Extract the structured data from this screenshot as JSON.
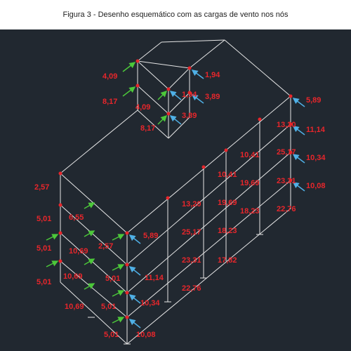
{
  "caption": "Figura 3 -  Desenho esquemático com as cargas de vento nos nós",
  "colors": {
    "background": "#212830",
    "frame": "#e6e6e6",
    "load_label": "#e8262b",
    "green_arrow": "#4cc83a",
    "blue_arrow": "#4fb0e6",
    "node": "#e8262b"
  },
  "left_face_labels": [
    "2,57",
    "5,01",
    "5,01",
    "5,01",
    "10,69"
  ],
  "left_face_inner_labels": [
    "6,55",
    "10,69",
    "10,69",
    "2,57",
    "5,01",
    "5,01",
    "5,01"
  ],
  "front_labels": [
    "5,89",
    "11,14",
    "10,34",
    "10,08"
  ],
  "mid_labels": [
    "13,20",
    "25,17",
    "23,31",
    "22,76",
    "19,69",
    "18,23",
    "17,82",
    "10,41"
  ],
  "rear_labels": [
    "13,20",
    "10,41",
    "25,17",
    "19,69",
    "23,31",
    "18,23",
    "22,76",
    "5,89",
    "11,14",
    "10,34",
    "10,08"
  ],
  "top_box_labels": [
    "4,09",
    "8,17",
    "4,09",
    "8,17",
    "1,94",
    "3,89",
    "1,94",
    "3,89"
  ]
}
